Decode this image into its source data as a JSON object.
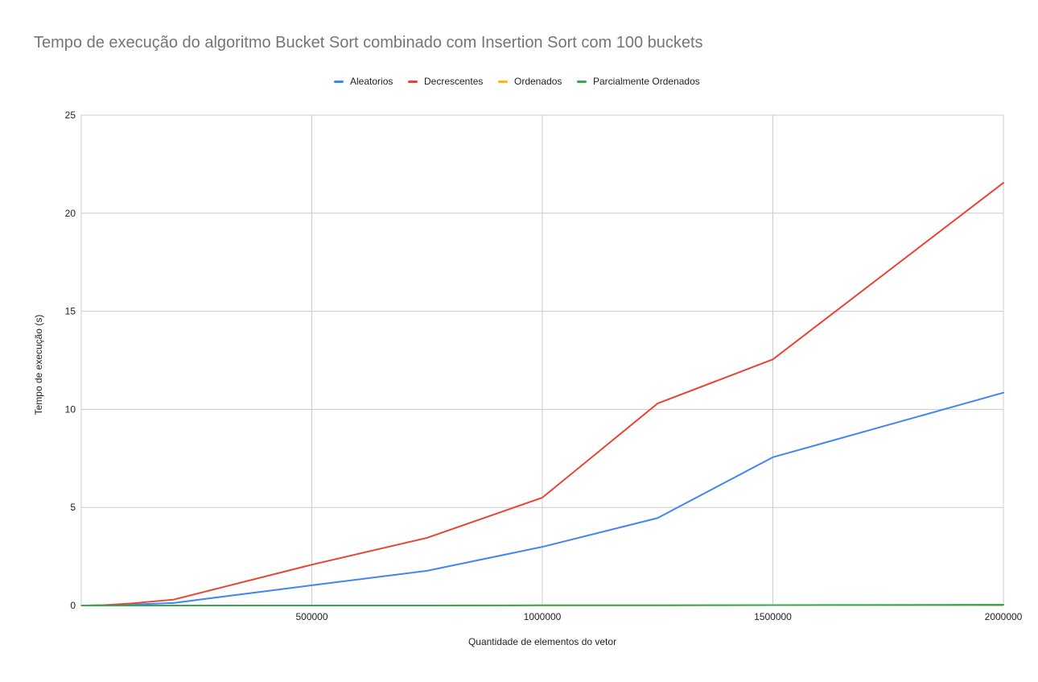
{
  "chart_data": {
    "type": "line",
    "title": "Tempo de execução do algoritmo Bucket Sort combinado com Insertion Sort com 100 buckets",
    "xlabel": "Quantidade de elementos do vetor",
    "ylabel": "Tempo de execução (s)",
    "x": [
      1000,
      5000,
      10000,
      50000,
      100000,
      200000,
      500000,
      750000,
      1000000,
      1250000,
      1500000,
      2000000
    ],
    "xlim": [
      0,
      2000000
    ],
    "ylim": [
      0,
      25
    ],
    "xticks": [
      500000,
      1000000,
      1500000,
      2000000
    ],
    "yticks": [
      0,
      5,
      10,
      15,
      20,
      25
    ],
    "grid": true,
    "legend_position": "top",
    "series": [
      {
        "name": "Aleatorios",
        "color": "#4285f4",
        "values": [
          0.0,
          0.0,
          0.0,
          0.01,
          0.04,
          0.13,
          1.03,
          1.77,
          2.99,
          4.46,
          7.56,
          10.85
        ]
      },
      {
        "name": "Decrescentes",
        "color": "#ea4335",
        "values": [
          0.0,
          0.0,
          0.0,
          0.02,
          0.09,
          0.3,
          2.08,
          3.45,
          5.5,
          10.3,
          12.55,
          21.55
        ]
      },
      {
        "name": "Ordenados",
        "color": "#fbbc04",
        "values": [
          0.0,
          0.0,
          0.0,
          0.0,
          0.0,
          0.0,
          0.0,
          0.0,
          0.01,
          0.01,
          0.02,
          0.03
        ]
      },
      {
        "name": "Parcialmente Ordenados",
        "color": "#34a853",
        "values": [
          0.0,
          0.0,
          0.0,
          0.0,
          0.0,
          0.0,
          0.0,
          0.0,
          0.01,
          0.01,
          0.02,
          0.04
        ]
      }
    ]
  }
}
